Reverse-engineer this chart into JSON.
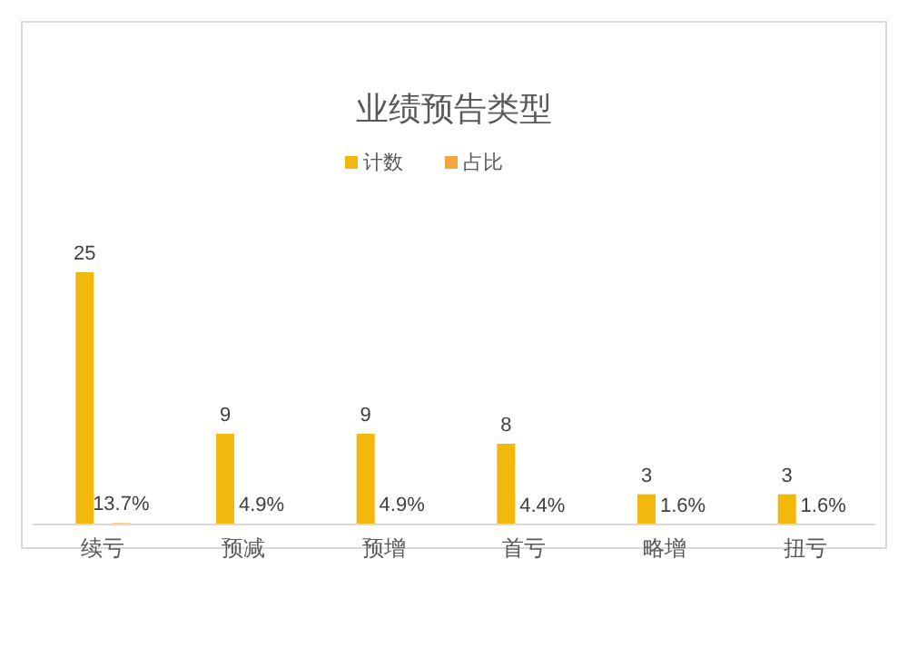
{
  "chart_data": {
    "type": "bar",
    "title": "业绩预告类型",
    "categories": [
      "续亏",
      "预减",
      "预增",
      "首亏",
      "略增",
      "扭亏"
    ],
    "series": [
      {
        "name": "计数",
        "color": "#f2b80c",
        "values": [
          25,
          9,
          9,
          8,
          3,
          3
        ],
        "value_labels": [
          "25",
          "9",
          "9",
          "8",
          "3",
          "3"
        ]
      },
      {
        "name": "占比",
        "color": "#f5a442",
        "values": [
          0.137,
          0.049,
          0.049,
          0.044,
          0.016,
          0.016
        ],
        "value_labels": [
          "13.7%",
          "4.9%",
          "4.9%",
          "4.4%",
          "1.6%",
          "1.6%"
        ]
      }
    ],
    "legend": "top",
    "grid": false
  }
}
